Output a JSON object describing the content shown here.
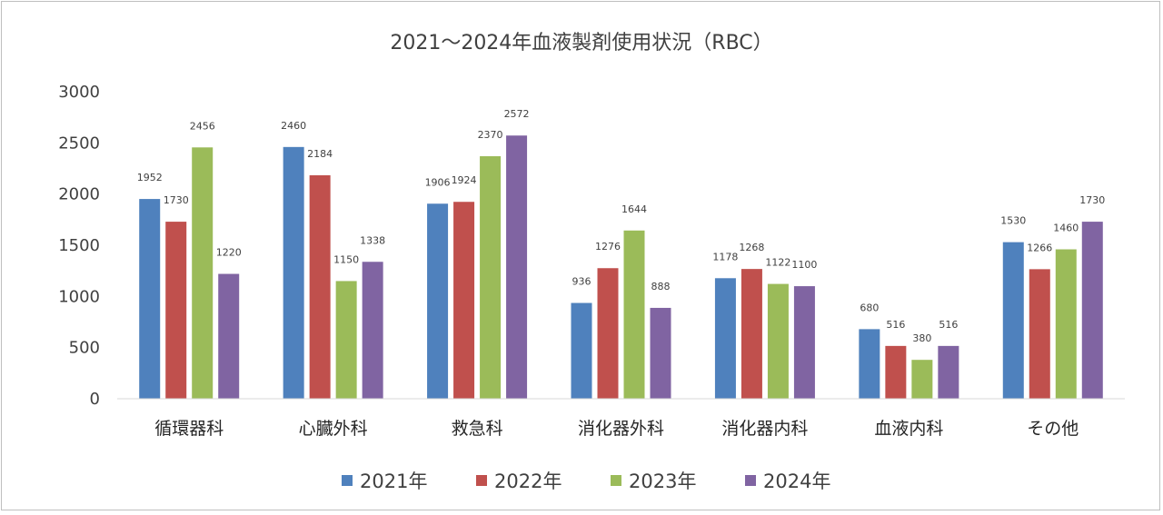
{
  "chart_data": {
    "type": "bar",
    "title": "2021～2024年血液製剤使用状況（RBC）",
    "xlabel": "",
    "ylabel": "",
    "ylim": [
      0,
      3000
    ],
    "yticks": [
      0,
      500,
      1000,
      1500,
      2000,
      2500,
      3000
    ],
    "grid": false,
    "legend_position": "bottom",
    "categories": [
      "循環器科",
      "心臓外科",
      "救急科",
      "消化器外科",
      "消化器内科",
      "血液内科",
      "その他"
    ],
    "series": [
      {
        "name": "2021年",
        "color": "#4f81bd",
        "values": [
          1952,
          2460,
          1906,
          936,
          1178,
          680,
          1530
        ]
      },
      {
        "name": "2022年",
        "color": "#c0504d",
        "values": [
          1730,
          2184,
          1924,
          1276,
          1268,
          516,
          1266
        ]
      },
      {
        "name": "2023年",
        "color": "#9bbb59",
        "values": [
          2456,
          1150,
          2370,
          1644,
          1122,
          380,
          1460
        ]
      },
      {
        "name": "2024年",
        "color": "#8064a2",
        "values": [
          1220,
          1338,
          2572,
          888,
          1100,
          516,
          1730
        ]
      }
    ]
  }
}
